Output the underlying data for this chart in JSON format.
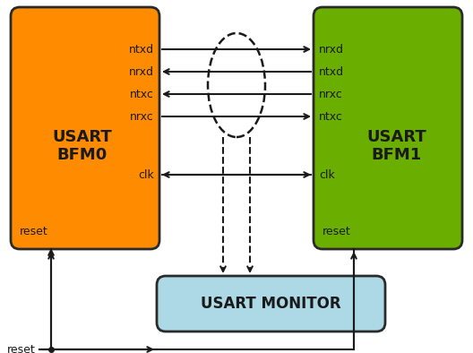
{
  "bg_color": "#ffffff",
  "bfm0_color": "#FF8C00",
  "bfm1_color": "#6AAF00",
  "monitor_color": "#ADD8E6",
  "bfm0_label": "USART\nBFM0",
  "bfm1_label": "USART\nBFM1",
  "monitor_label": "USART MONITOR",
  "bfm0_signals": [
    "ntxd",
    "nrxd",
    "ntxc",
    "nrxc"
  ],
  "bfm1_signals": [
    "nrxd",
    "ntxd",
    "nrxc",
    "ntxc"
  ],
  "signal_directions": [
    "right",
    "left",
    "left",
    "right"
  ],
  "clk_label": "clk",
  "reset_label": "reset",
  "arrow_color": "#1a1a1a",
  "ellipse_color": "#1a1a1a",
  "text_color": "#1a1a1a",
  "signal_fontsize": 9,
  "label_fontsize": 13,
  "reset_fontsize": 9,
  "clk_fontsize": 9,
  "monitor_fontsize": 12
}
